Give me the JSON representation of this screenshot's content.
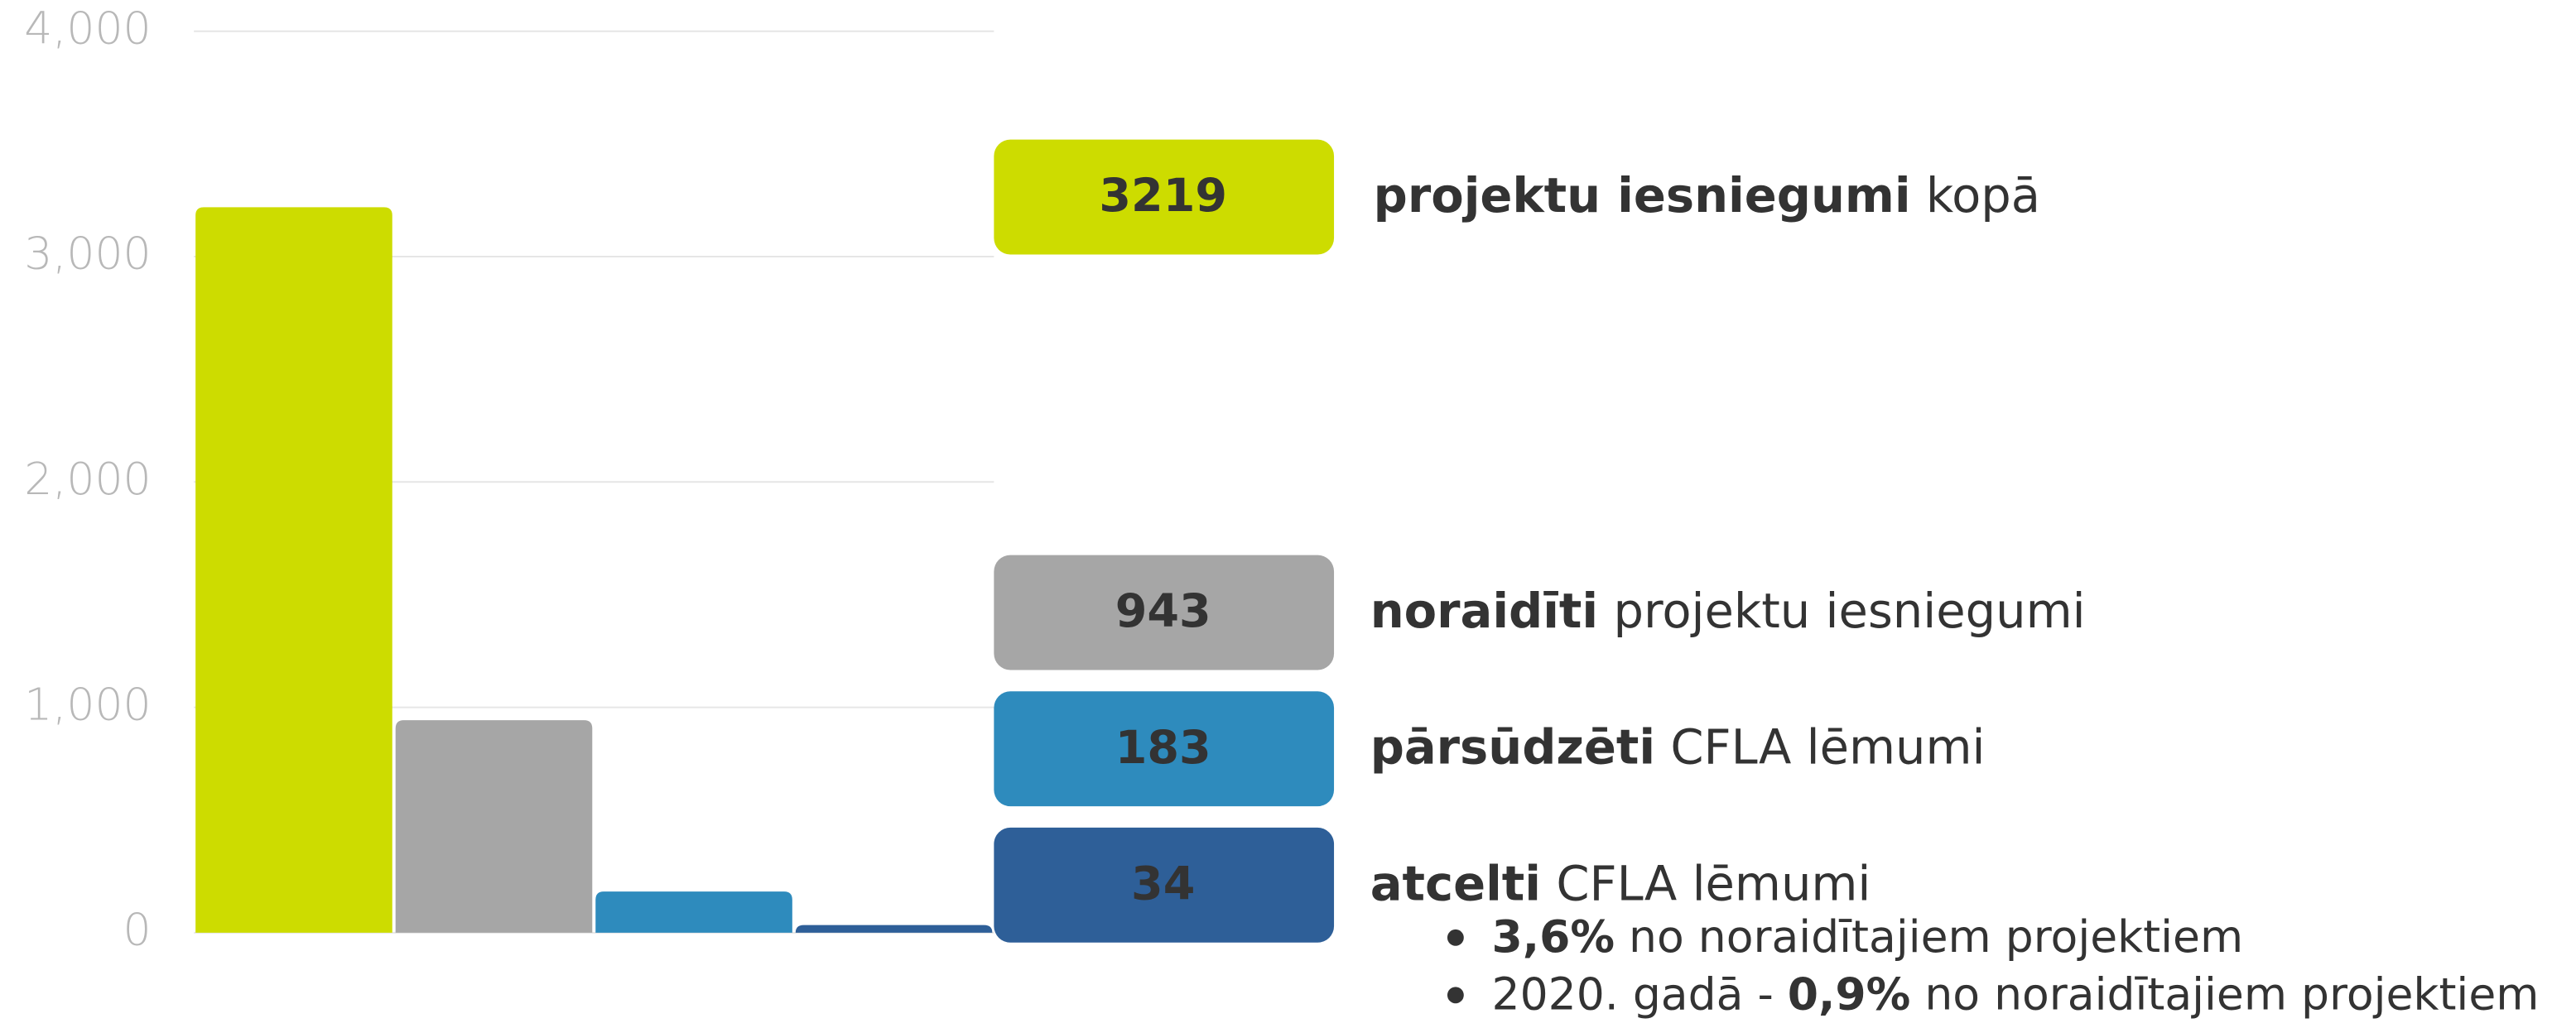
{
  "chart_data": {
    "type": "bar",
    "values": [
      3219,
      943,
      183,
      34
    ],
    "colors": [
      "#cddc00",
      "#a6a6a6",
      "#2e8bbd",
      "#2e5f98"
    ],
    "ylim": [
      0,
      4000
    ],
    "yticks": [
      0,
      {
        "value": 1000,
        "label": "1,000"
      },
      {
        "value": 2000,
        "label": "2,000"
      },
      {
        "value": 3000,
        "label": "3,000"
      },
      {
        "value": 4000,
        "label": "4,000"
      }
    ],
    "grid": true,
    "legend": [
      {
        "bold": "projektu iesniegumi",
        "text": "kopā"
      },
      {
        "bold": "noraidīti",
        "text": "projektu iesniegumi"
      },
      {
        "bold": "pārsūdzēti",
        "text": "CFLA lēmumi"
      },
      {
        "bold": "atcelti",
        "text": "CFLA lēmumi"
      }
    ],
    "notes": [
      {
        "bold": "3,6%",
        "text": "no noraidītajiem projektiem"
      },
      {
        "before": "2020. gadā -",
        "bold": "0,9%",
        "text": "no noraidītajiem projektiem"
      }
    ]
  }
}
